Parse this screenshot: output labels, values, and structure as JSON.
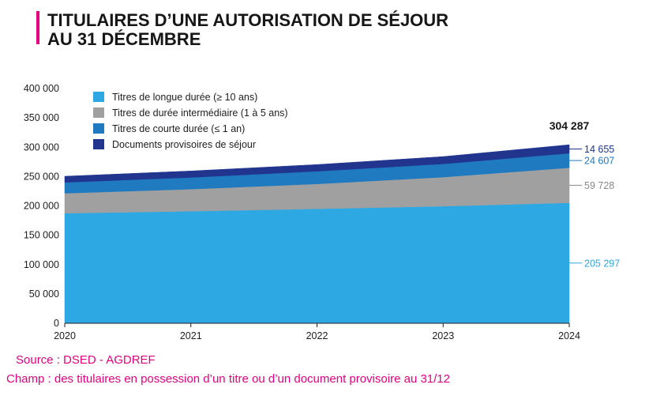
{
  "title": {
    "line1": "TITULAIRES D’UNE AUTORISATION DE SÉJOUR",
    "line2": "AU 31 DÉCEMBRE"
  },
  "footer": {
    "source": "Source : DSED - AGDREF",
    "scope": "Champ : des titulaires en possession d’un titre ou d’un document provisoire au 31/12"
  },
  "colors": {
    "accent": "#e6007e",
    "long": "#2ea8e3",
    "inter": "#a0a0a0",
    "short": "#1f7ac0",
    "prov": "#21358f"
  },
  "chart_data": {
    "type": "area",
    "stacked": true,
    "title": "TITULAIRES D’UNE AUTORISATION DE SÉJOUR AU 31 DÉCEMBRE",
    "x": [
      "2020",
      "2021",
      "2022",
      "2023",
      "2024"
    ],
    "ylim": [
      0,
      400000
    ],
    "yticks": [
      0,
      50000,
      100000,
      150000,
      200000,
      250000,
      300000,
      350000,
      400000
    ],
    "ytick_labels": [
      "0",
      "50 000",
      "100 000",
      "150 000",
      "200 000",
      "250 000",
      "300 000",
      "350 000",
      "400 000"
    ],
    "grid": false,
    "legend_position": "top-left",
    "series": [
      {
        "key": "long",
        "name": "Titres de longue durée (≥ 10 ans)",
        "values": [
          187500,
          191000,
          195000,
          199500,
          205297
        ],
        "end_label": "205 297",
        "color": "#2ea8e3",
        "label_color": "#2ea8e3"
      },
      {
        "key": "inter",
        "name": "Titres de durée intermédiaire (1 à 5 ans)",
        "values": [
          34000,
          37500,
          42500,
          49500,
          59728
        ],
        "end_label": "59 728",
        "color": "#a0a0a0",
        "label_color": "#8a8a8a"
      },
      {
        "key": "short",
        "name": "Titres de courte durée (≤ 1 an)",
        "values": [
          18500,
          20000,
          21500,
          22500,
          24607
        ],
        "end_label": "24 607",
        "color": "#1f7ac0",
        "label_color": "#1f7ac0"
      },
      {
        "key": "prov",
        "name": "Documents provisoires de séjour",
        "values": [
          10500,
          11000,
          11500,
          12500,
          14655
        ],
        "end_label": "14 655",
        "color": "#21358f",
        "label_color": "#21358f"
      }
    ],
    "total_label": "304 287"
  }
}
